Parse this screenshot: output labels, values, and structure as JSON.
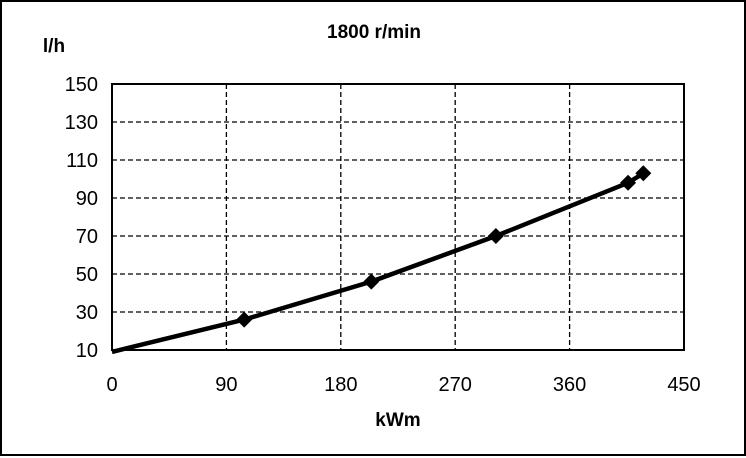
{
  "chart_data": {
    "type": "line",
    "title": "1800 r/min",
    "xlabel": "kWm",
    "ylabel": "l/h",
    "xlim": [
      0,
      450
    ],
    "ylim": [
      10,
      150
    ],
    "xticks": [
      0,
      90,
      180,
      270,
      360,
      450
    ],
    "yticks": [
      10,
      30,
      50,
      70,
      90,
      110,
      130,
      150
    ],
    "grid": true,
    "grid_style": "dashed",
    "line_color": "#000000",
    "marker": "diamond",
    "series": [
      {
        "x": [
          0,
          104,
          204,
          302,
          406,
          418
        ],
        "y": [
          9,
          26,
          46,
          70,
          98,
          103
        ],
        "markers": [
          false,
          true,
          true,
          true,
          true,
          true
        ]
      }
    ]
  }
}
